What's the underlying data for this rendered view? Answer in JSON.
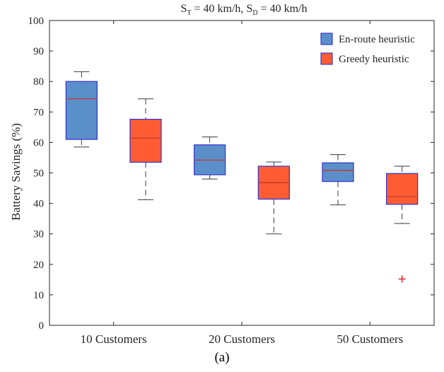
{
  "chart_data": {
    "type": "box",
    "title": {
      "s_t": "S",
      "s_t_sub": "T",
      "s_t_rest": " = 40 km/h, ",
      "s_d": "S",
      "s_d_sub": "D",
      "s_d_rest": " = 40 km/h"
    },
    "ylabel": "Battery Savings (%)",
    "xlabel": "",
    "ylim": [
      0,
      100
    ],
    "yticks": [
      0,
      10,
      20,
      30,
      40,
      50,
      60,
      70,
      80,
      90,
      100
    ],
    "grid": false,
    "legend_position": "top-right",
    "categories": [
      "10 Customers",
      "20 Customers",
      "50 Customers"
    ],
    "series": [
      {
        "name": "En-route heuristic",
        "color": "#5b8fc9",
        "boxes": [
          {
            "category": "10 Customers",
            "whisker_low": 58.5,
            "q1": 61,
            "median": 74.3,
            "q3": 80,
            "whisker_high": 83.2,
            "outliers": []
          },
          {
            "category": "20 Customers",
            "whisker_low": 48,
            "q1": 49.4,
            "median": 54.2,
            "q3": 59.2,
            "whisker_high": 61.8,
            "outliers": []
          },
          {
            "category": "50 Customers",
            "whisker_low": 39.5,
            "q1": 47.2,
            "median": 50.8,
            "q3": 53.3,
            "whisker_high": 56,
            "outliers": []
          }
        ]
      },
      {
        "name": "Greedy heuristic",
        "color": "#ff5c33",
        "boxes": [
          {
            "category": "10 Customers",
            "whisker_low": 41.2,
            "q1": 53.5,
            "median": 61.4,
            "q3": 67.6,
            "whisker_high": 74.3,
            "outliers": []
          },
          {
            "category": "20 Customers",
            "whisker_low": 30,
            "q1": 41.4,
            "median": 46.8,
            "q3": 52.2,
            "whisker_high": 53.6,
            "outliers": []
          },
          {
            "category": "50 Customers",
            "whisker_low": 33.4,
            "q1": 39.7,
            "median": 42.2,
            "q3": 49.8,
            "whisker_high": 52.2,
            "outliers": [
              15.2
            ]
          }
        ]
      }
    ],
    "box_edge_color": "#3a3ad0",
    "median_color": "#c0392b",
    "whisker_color": "#3a3a3a",
    "outlier_color": "#e02020",
    "caption": "(a)"
  }
}
